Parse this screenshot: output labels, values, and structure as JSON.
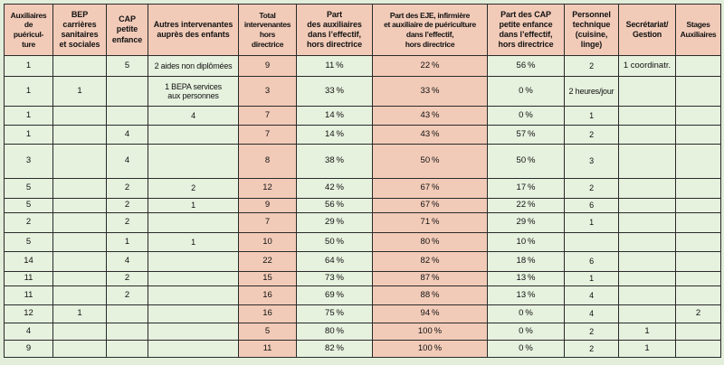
{
  "table": {
    "colors": {
      "page_bg": "#e2eeda",
      "cell_bg": "#e6f1de",
      "header_bg": "#f2cbb8",
      "border": "#2a2a2a"
    },
    "columns": [
      {
        "id": "auxiliaires-puericulture",
        "label": "Auxiliaires\nde\npuéricul-\nture",
        "highlight": false
      },
      {
        "id": "bep-carrieres",
        "label": "BEP\ncarrières\nsanitaires\net sociales",
        "highlight": false
      },
      {
        "id": "cap-petite-enfance",
        "label": "CAP\npetite\nenfance",
        "highlight": false
      },
      {
        "id": "autres-intervenantes",
        "label": "Autres intervenantes\nauprès des enfants",
        "highlight": false
      },
      {
        "id": "total-intervenantes",
        "label": "Total\nintervenantes\nhors\ndirectrice",
        "highlight": true
      },
      {
        "id": "part-auxiliaires",
        "label": "Part\ndes auxiliaires\ndans l’effectif,\nhors directrice",
        "highlight": false
      },
      {
        "id": "part-eje-infirmiere",
        "label": "Part des EJE, infirmière\net auxiliaire de puériculture\ndans l’effectif,\nhors directrice",
        "highlight": true
      },
      {
        "id": "part-cap",
        "label": "Part des CAP\npetite enfance\ndans l’effectif,\nhors directrice",
        "highlight": false
      },
      {
        "id": "personnel-technique",
        "label": "Personnel\ntechnique\n(cuisine,\nlinge)",
        "highlight": false
      },
      {
        "id": "secretariat-gestion",
        "label": "Secrétariat/\nGestion",
        "highlight": false
      },
      {
        "id": "stages-auxiliaires",
        "label": "Stages\nAuxiliaires",
        "highlight": false
      }
    ],
    "rows": [
      [
        "1",
        "",
        "5",
        "2 aides non diplômées",
        "9",
        "11 %",
        "22 %",
        "56 %",
        "2",
        "1 coordinatr.",
        ""
      ],
      [
        "1",
        "1",
        "",
        "1 BEPA services\naux personnes",
        "3",
        "33 %",
        "33 %",
        "0 %",
        "2 heures/jour",
        "",
        ""
      ],
      [
        "1",
        "",
        "",
        "4",
        "7",
        "14 %",
        "43 %",
        "0 %",
        "1",
        "",
        ""
      ],
      [
        "1",
        "",
        "4",
        "",
        "7",
        "14 %",
        "43 %",
        "57 %",
        "2",
        "",
        ""
      ],
      [
        "3",
        "",
        "4",
        "",
        "8",
        "38 %",
        "50 %",
        "50 %",
        "3",
        "",
        ""
      ],
      [
        "5",
        "",
        "2",
        "2",
        "12",
        "42 %",
        "67 %",
        "17 %",
        "2",
        "",
        ""
      ],
      [
        "5",
        "",
        "2",
        "1",
        "9",
        "56 %",
        "67 %",
        "22 %",
        "6",
        "",
        ""
      ],
      [
        "2",
        "",
        "2",
        "",
        "7",
        "29 %",
        "71 %",
        "29 %",
        "1",
        "",
        ""
      ],
      [
        "5",
        "",
        "1",
        "1",
        "10",
        "50 %",
        "80 %",
        "10 %",
        "",
        "",
        ""
      ],
      [
        "14",
        "",
        "4",
        "",
        "22",
        "64 %",
        "82 %",
        "18 %",
        "6",
        "",
        ""
      ],
      [
        "11",
        "",
        "2",
        "",
        "15",
        "73 %",
        "87 %",
        "13 %",
        "1",
        "",
        ""
      ],
      [
        "11",
        "",
        "2",
        "",
        "16",
        "69 %",
        "88 %",
        "13 %",
        "4",
        "",
        ""
      ],
      [
        "12",
        "1",
        "",
        "",
        "16",
        "75 %",
        "94 %",
        "0 %",
        "4",
        "",
        "2"
      ],
      [
        "4",
        "",
        "",
        "",
        "5",
        "80 %",
        "100 %",
        "0 %",
        "2",
        "1",
        ""
      ],
      [
        "9",
        "",
        "",
        "",
        "11",
        "82 %",
        "100 %",
        "0 %",
        "2",
        "1",
        ""
      ]
    ]
  }
}
